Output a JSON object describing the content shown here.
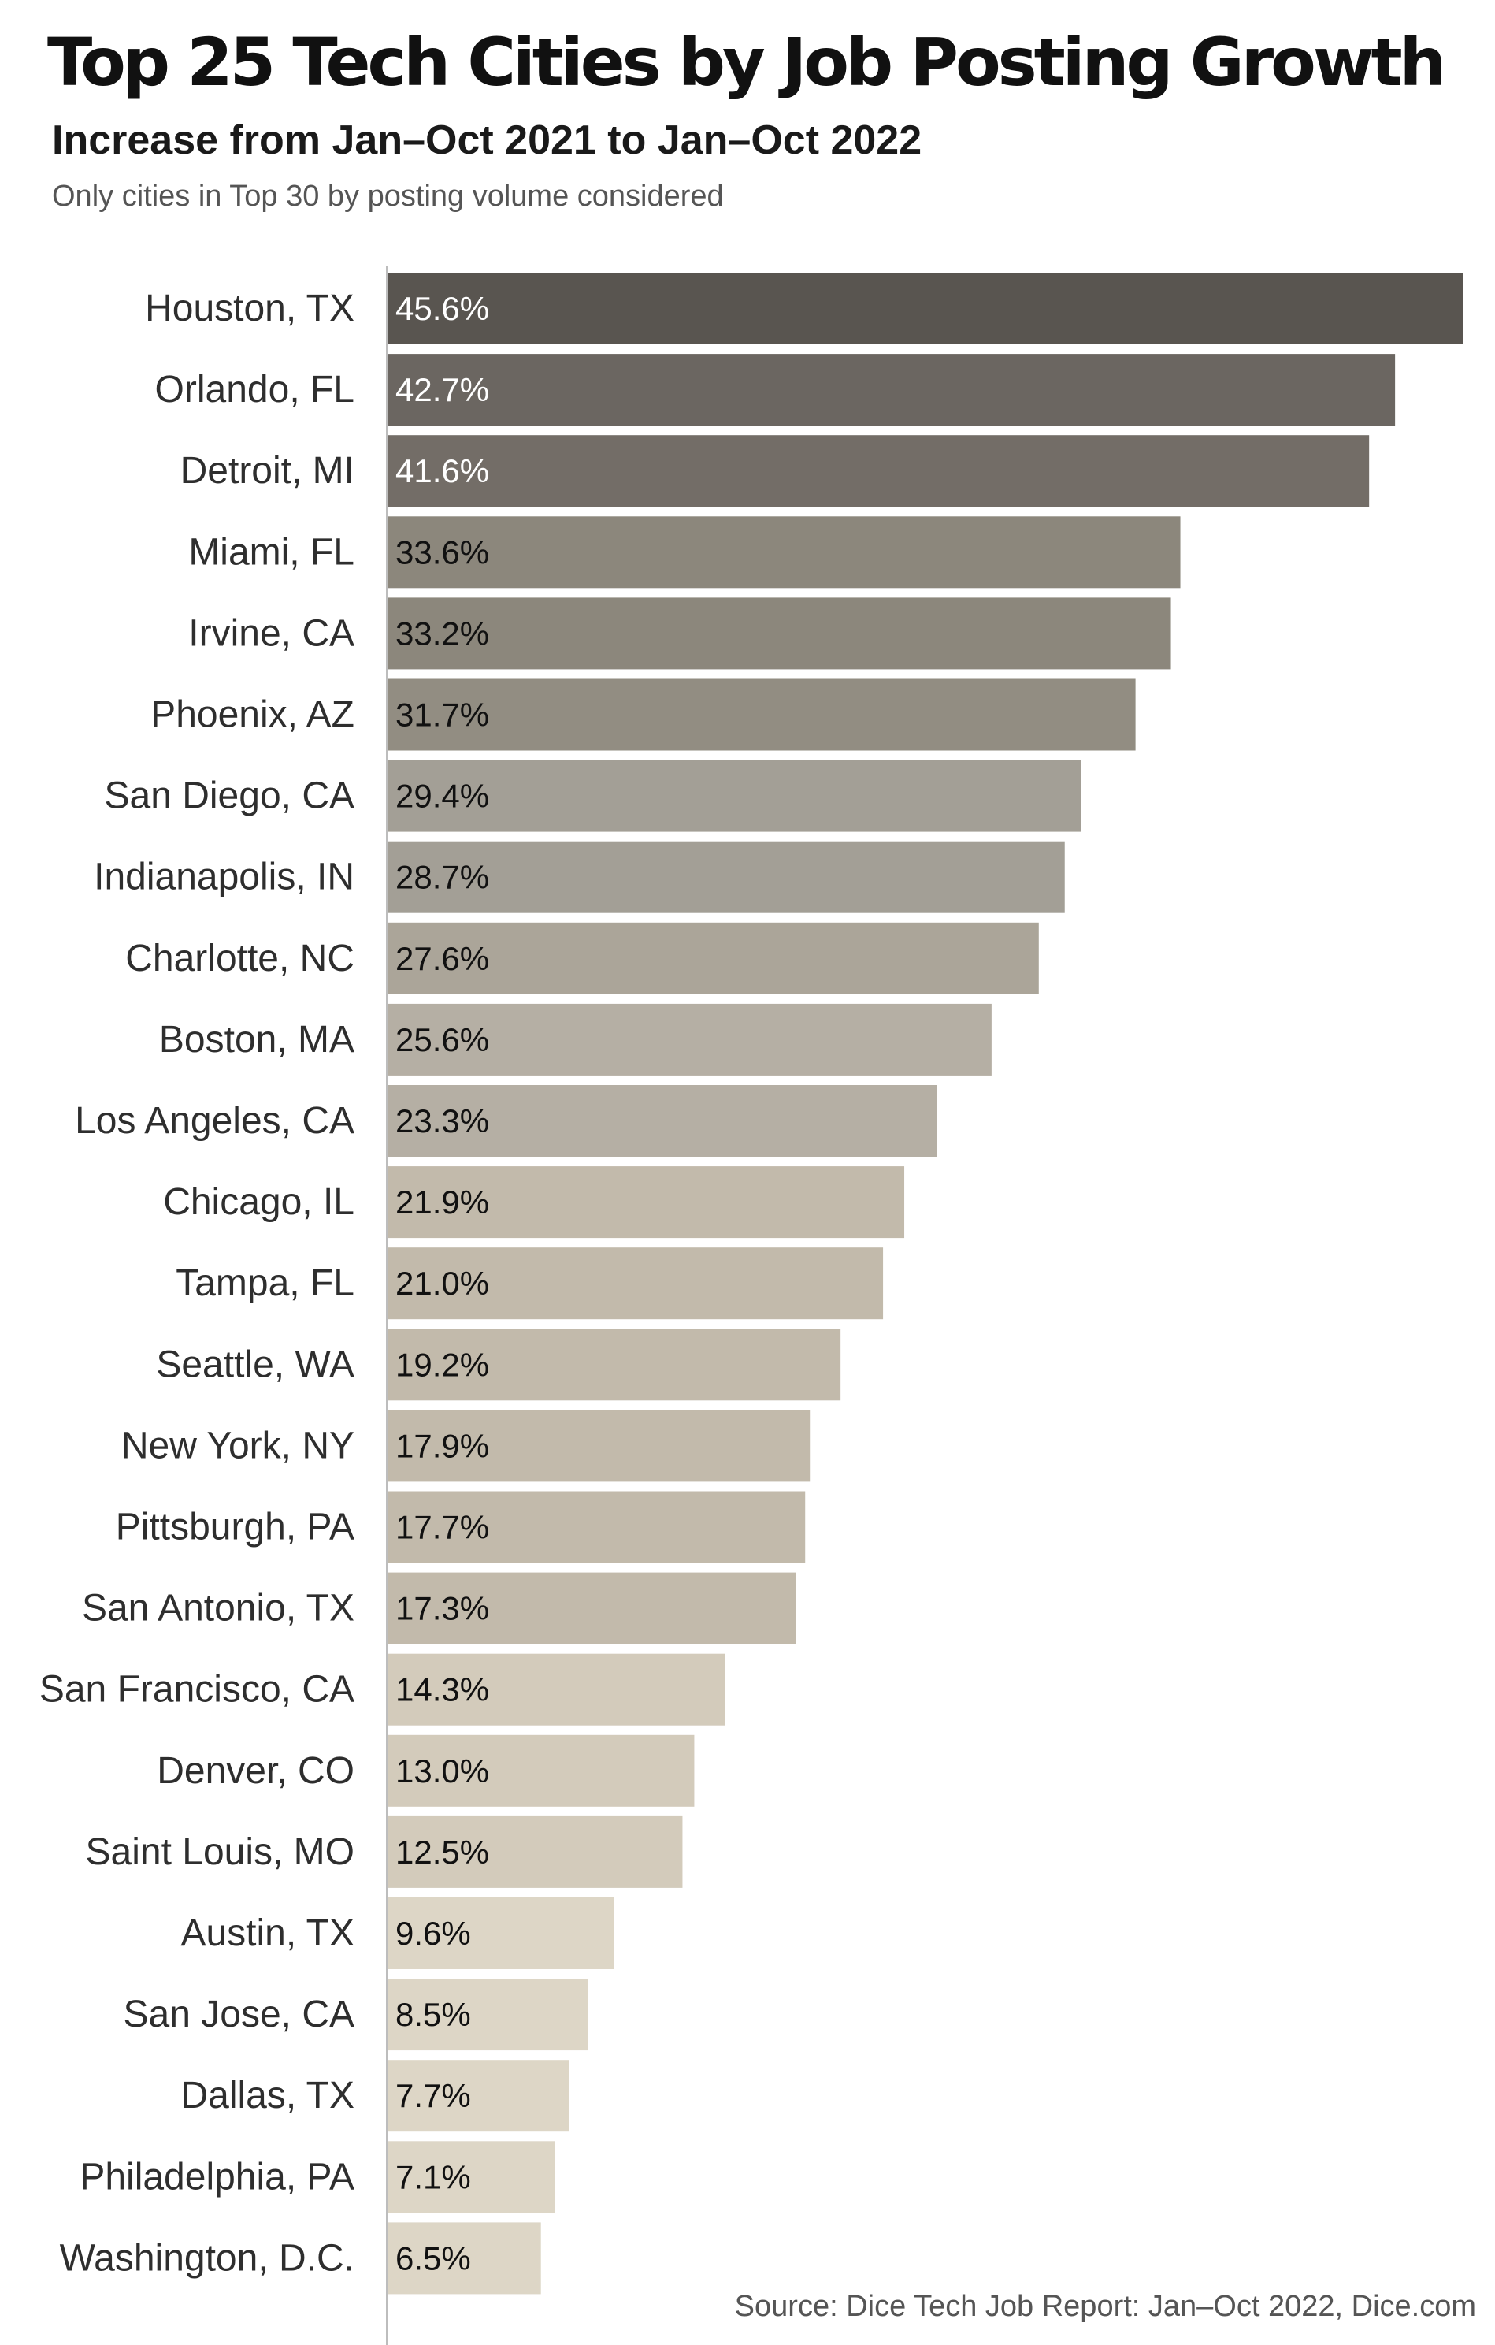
{
  "chart_data": {
    "type": "bar",
    "orientation": "horizontal",
    "title": "Top 25 Tech Cities by Job Posting Growth",
    "subtitle": "Increase from Jan–Oct 2021 to Jan–Oct 2022",
    "note": "Only cities in Top 30 by posting volume considered",
    "source": "Source: Dice Tech Job Report: Jan–Oct 2022, Dice.com",
    "categories": [
      "Houston, TX",
      "Orlando, FL",
      "Detroit, MI",
      "Miami, FL",
      "Irvine, CA",
      "Phoenix, AZ",
      "San Diego, CA",
      "Indianapolis, IN",
      "Charlotte, NC",
      "Boston, MA",
      "Los Angeles, CA",
      "Chicago, IL",
      "Tampa, FL",
      "Seattle, WA",
      "New York, NY",
      "Pittsburgh, PA",
      "San Antonio, TX",
      "San Francisco, CA",
      "Denver, CO",
      "Saint Louis, MO",
      "Austin, TX",
      "San Jose, CA",
      "Dallas, TX",
      "Philadelphia, PA",
      "Washington, D.C."
    ],
    "values": [
      45.6,
      42.7,
      41.6,
      33.6,
      33.2,
      31.7,
      29.4,
      28.7,
      27.6,
      25.6,
      23.3,
      21.9,
      21.0,
      19.2,
      17.9,
      17.7,
      17.3,
      14.3,
      13.0,
      12.5,
      9.6,
      8.5,
      7.7,
      7.1,
      6.5
    ],
    "value_labels": [
      "45.6%",
      "42.7%",
      "41.6%",
      "33.6%",
      "33.2%",
      "31.7%",
      "29.4%",
      "28.7%",
      "27.6%",
      "25.6%",
      "23.3%",
      "21.9%",
      "21.0%",
      "19.2%",
      "17.9%",
      "17.7%",
      "17.3%",
      "14.3%",
      "13.0%",
      "12.5%",
      "9.6%",
      "8.5%",
      "7.7%",
      "7.1%",
      "6.5%"
    ],
    "unit": "%",
    "xlim": [
      0,
      45.6
    ],
    "grid": false,
    "legend": "none",
    "colors": [
      "#595550",
      "#6b6661",
      "#736d67",
      "#8c877c",
      "#8c877c",
      "#928d82",
      "#a39f96",
      "#a39f96",
      "#aba599",
      "#b5afa4",
      "#b5afa4",
      "#c2baab",
      "#c2baab",
      "#c2baab",
      "#c2baab",
      "#c2baab",
      "#c2baab",
      "#d3cbbb",
      "#d3cbbb",
      "#d3cbbb",
      "#ddd6c6",
      "#ddd6c6",
      "#ddd6c6",
      "#ddd6c6",
      "#ddd6c6"
    ],
    "label_colors": [
      "#ffffff",
      "#ffffff",
      "#ffffff",
      "#111111",
      "#111111",
      "#111111",
      "#111111",
      "#111111",
      "#111111",
      "#111111",
      "#111111",
      "#111111",
      "#111111",
      "#111111",
      "#111111",
      "#111111",
      "#111111",
      "#111111",
      "#111111",
      "#111111",
      "#111111",
      "#111111",
      "#111111",
      "#111111",
      "#111111"
    ]
  }
}
